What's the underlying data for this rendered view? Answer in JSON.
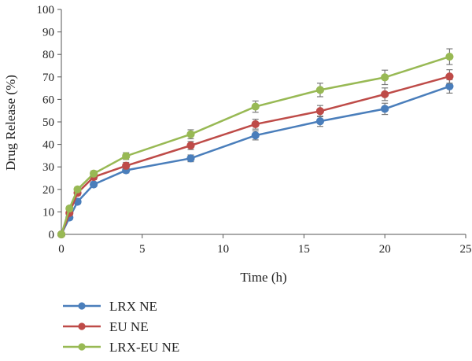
{
  "chart_data": {
    "type": "line",
    "xlabel": "Time (h)",
    "ylabel": "Drug Release (%)",
    "xlim": [
      0,
      25
    ],
    "ylim": [
      0,
      100
    ],
    "x_ticks": [
      "0",
      "5",
      "10",
      "15",
      "20",
      "25"
    ],
    "y_ticks": [
      "0",
      "10",
      "20",
      "30",
      "40",
      "50",
      "60",
      "70",
      "80",
      "90",
      "100"
    ],
    "grid": false,
    "legend_position": "bottom-left",
    "series": [
      {
        "name": "LRX NE",
        "color": "#4a7ebb",
        "x": [
          0,
          0.5,
          1,
          2,
          4,
          8,
          12,
          16,
          20,
          24
        ],
        "y": [
          0,
          7.5,
          14.5,
          22.2,
          28.5,
          33.8,
          44,
          50.3,
          55.8,
          65.8
        ],
        "err": [
          0.5,
          1.0,
          1.0,
          1.0,
          1.2,
          1.5,
          2.0,
          2.3,
          2.5,
          3.0
        ]
      },
      {
        "name": "EU NE",
        "color": "#be4b48",
        "x": [
          0,
          0.5,
          1,
          2,
          4,
          8,
          12,
          16,
          20,
          24
        ],
        "y": [
          0,
          9.5,
          18.5,
          25.5,
          30.5,
          39.5,
          49,
          54.8,
          62.3,
          70.2
        ],
        "err": [
          0.5,
          1.0,
          1.2,
          1.2,
          1.5,
          1.8,
          2.2,
          2.5,
          2.8,
          3.0
        ]
      },
      {
        "name": "LRX-EU NE",
        "color": "#98b954",
        "x": [
          0,
          0.5,
          1,
          2,
          4,
          8,
          12,
          16,
          20,
          24
        ],
        "y": [
          0,
          11.5,
          20,
          27,
          34.8,
          44.5,
          56.8,
          64.2,
          69.8,
          79
        ],
        "err": [
          0.5,
          1.0,
          1.0,
          1.2,
          1.5,
          2.0,
          2.5,
          3.0,
          3.2,
          3.5
        ]
      }
    ]
  }
}
